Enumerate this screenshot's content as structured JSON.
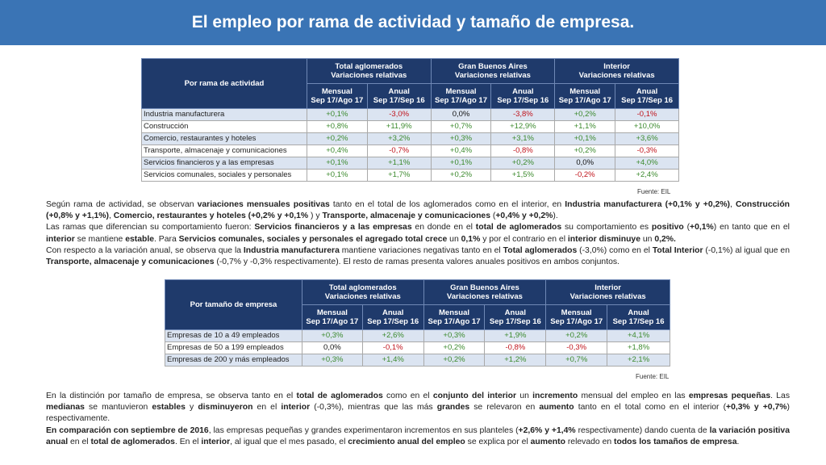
{
  "title": "El empleo por rama de actividad y tamaño de empresa.",
  "table_rama": {
    "row_header": "Por rama de actividad",
    "groups": [
      {
        "title": "Total aglomerados",
        "subtitle": "Variaciones relativas"
      },
      {
        "title": "Gran Buenos Aires",
        "subtitle": "Variaciones relativas"
      },
      {
        "title": "Interior",
        "subtitle": "Variaciones relativas"
      }
    ],
    "col_mensual": "Mensual",
    "col_mensual_period": "Sep 17/Ago 17",
    "col_anual": "Anual",
    "col_anual_period": "Sep 17/Sep 16",
    "rows": [
      {
        "label": "Industria manufacturera",
        "values": [
          "+0,1%",
          "-3,0%",
          "0,0%",
          "-3,8%",
          "+0,2%",
          "-0,1%"
        ]
      },
      {
        "label": "Construcción",
        "values": [
          "+0,8%",
          "+11,9%",
          "+0,7%",
          "+12,9%",
          "+1,1%",
          "+10,0%"
        ]
      },
      {
        "label": "Comercio, restaurantes y hoteles",
        "values": [
          "+0,2%",
          "+3,2%",
          "+0,3%",
          "+3,1%",
          "+0,1%",
          "+3,6%"
        ]
      },
      {
        "label": "Transporte, almacenaje y comunicaciones",
        "values": [
          "+0,4%",
          "-0,7%",
          "+0,4%",
          "-0,8%",
          "+0,2%",
          "-0,3%"
        ]
      },
      {
        "label": "Servicios financieros y a las empresas",
        "values": [
          "+0,1%",
          "+1,1%",
          "+0,1%",
          "+0,2%",
          "0,0%",
          "+4,0%"
        ]
      },
      {
        "label": "Servicios comunales, sociales y personales",
        "values": [
          "+0,1%",
          "+1,7%",
          "+0,2%",
          "+1,5%",
          "-0,2%",
          "+2,4%"
        ]
      }
    ],
    "source": "Fuente: EIL"
  },
  "table_tamano": {
    "row_header": "Por tamaño de empresa",
    "groups": [
      {
        "title": "Total aglomerados",
        "subtitle": "Variaciones relativas"
      },
      {
        "title": "Gran Buenos Aires",
        "subtitle": "Variaciones relativas"
      },
      {
        "title": "Interior",
        "subtitle": "Variaciones relativas"
      }
    ],
    "col_mensual": "Mensual",
    "col_mensual_period": "Sep 17/Ago 17",
    "col_anual": "Anual",
    "col_anual_period": "Sep 17/Sep 16",
    "rows": [
      {
        "label": "Empresas de 10 a 49 empleados",
        "values": [
          "+0,3%",
          "+2,6%",
          "+0,3%",
          "+1,9%",
          "+0,2%",
          "+4,1%"
        ]
      },
      {
        "label": "Empresas de 50 a 199 empleados",
        "values": [
          "0,0%",
          "-0,1%",
          "+0,2%",
          "-0,8%",
          "-0,3%",
          "+1,8%"
        ]
      },
      {
        "label": "Empresas de 200 y más empleados",
        "values": [
          "+0,3%",
          "+1,4%",
          "+0,2%",
          "+1,2%",
          "+0,7%",
          "+2,1%"
        ]
      }
    ],
    "source": "Fuente: EIL"
  },
  "paragraph_1": [
    {
      "t": "Según rama de actividad, se observan "
    },
    {
      "t": "variaciones mensuales positivas",
      "b": true
    },
    {
      "t": " tanto en el total de los aglomerados como en el interior, en "
    },
    {
      "t": "Industria manufacturera (+0,1% y +0,2%)",
      "b": true
    },
    {
      "t": ", "
    },
    {
      "t": "Construcción (+0,8% y +1,1%)",
      "b": true
    },
    {
      "t": ", "
    },
    {
      "t": "Comercio, restaurantes y hoteles (+0,2% y +0,1%",
      "b": true
    },
    {
      "t": " ) y "
    },
    {
      "t": "Transporte, almacenaje y comunicaciones",
      "b": true
    },
    {
      "t": " ("
    },
    {
      "t": "+0,4% y +0,2%",
      "b": true
    },
    {
      "t": ")."
    },
    {
      "br": true
    },
    {
      "t": "Las ramas que diferencian su comportamiento fueron:  "
    },
    {
      "t": "Servicios financieros y a las empresas",
      "b": true
    },
    {
      "t": " en donde en el "
    },
    {
      "t": "total de aglomerados",
      "b": true
    },
    {
      "t": " su comportamiento es "
    },
    {
      "t": "positivo",
      "b": true
    },
    {
      "t": " ("
    },
    {
      "t": "+0,1%",
      "b": true
    },
    {
      "t": ") en tanto que en el "
    },
    {
      "t": "interior",
      "b": true
    },
    {
      "t": " se mantiene "
    },
    {
      "t": "estable",
      "b": true
    },
    {
      "t": ".  Para "
    },
    {
      "t": "Servicios comunales, sociales y personales",
      "b": true
    },
    {
      "t": "  "
    },
    {
      "t": "el agregado total crece",
      "b": true
    },
    {
      "t": " un "
    },
    {
      "t": "0,1%",
      "b": true
    },
    {
      "t": " y por el contrario en el "
    },
    {
      "t": "interior disminuye",
      "b": true
    },
    {
      "t": " un "
    },
    {
      "t": "0,2%.",
      "b": true
    },
    {
      "br": true
    },
    {
      "t": "Con respecto a la variación anual, se observa que la "
    },
    {
      "t": "Industria manufacturera",
      "b": true
    },
    {
      "t": " mantiene variaciones negativas tanto en el "
    },
    {
      "t": "Total aglomerados",
      "b": true
    },
    {
      "t": " (-3,0%) como en el "
    },
    {
      "t": "Total Interior",
      "b": true
    },
    {
      "t": " (-0,1%) al igual que en "
    },
    {
      "t": "Transporte, almacenaje y comunicaciones",
      "b": true
    },
    {
      "t": " (-0,7% y -0,3% respectivamente). El resto de ramas presenta valores anuales positivos en ambos conjuntos."
    }
  ],
  "paragraph_2": [
    {
      "t": "En la distinción por tamaño de empresa, se observa tanto en el "
    },
    {
      "t": "total de aglomerados",
      "b": true
    },
    {
      "t": " como en el "
    },
    {
      "t": "conjunto del interior",
      "b": true
    },
    {
      "t": " un "
    },
    {
      "t": "incremento",
      "b": true
    },
    {
      "t": " mensual del empleo en las "
    },
    {
      "t": "empresas pequeñas",
      "b": true
    },
    {
      "t": ". Las "
    },
    {
      "t": "medianas",
      "b": true
    },
    {
      "t": " se mantuvieron "
    },
    {
      "t": "estables",
      "b": true
    },
    {
      "t": " y "
    },
    {
      "t": "disminuyeron",
      "b": true
    },
    {
      "t": " en el "
    },
    {
      "t": "interior",
      "b": true
    },
    {
      "t": " (-0,3%), mientras que las más "
    },
    {
      "t": "grandes",
      "b": true
    },
    {
      "t": " se relevaron en "
    },
    {
      "t": "aumento",
      "b": true
    },
    {
      "t": " tanto en el total como en el interior  ("
    },
    {
      "t": "+0,3% y +0,7%",
      "b": true
    },
    {
      "t": ") respectivamente."
    },
    {
      "br": true
    },
    {
      "t": "En comparación con septiembre de 2016",
      "b": true
    },
    {
      "t": ", las empresas pequeñas y grandes experimentaron incrementos en sus planteles ("
    },
    {
      "t": "+2,6% y +1,4%",
      "b": true
    },
    {
      "t": " respectivamente) dando cuenta de "
    },
    {
      "t": "la variación positiva anual",
      "b": true
    },
    {
      "t": " en el "
    },
    {
      "t": "total de aglomerados",
      "b": true
    },
    {
      "t": ". En el "
    },
    {
      "t": "interior",
      "b": true
    },
    {
      "t": ", al igual que el mes pasado, el "
    },
    {
      "t": "crecimiento anual del empleo",
      "b": true
    },
    {
      "t": " se explica por el "
    },
    {
      "t": "aumento",
      "b": true
    },
    {
      "t": " relevado en "
    },
    {
      "t": "todos los tamaños de empresa",
      "b": true
    },
    {
      "t": "."
    }
  ]
}
